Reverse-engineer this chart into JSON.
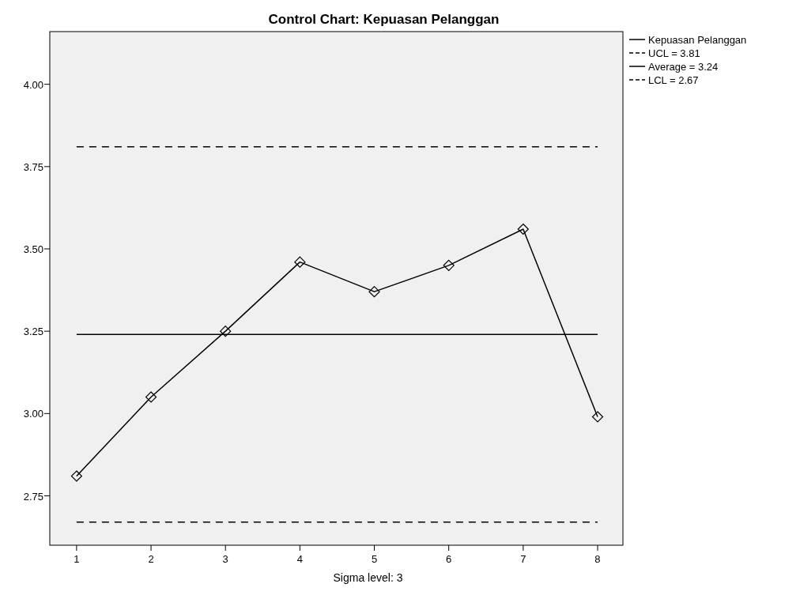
{
  "chart_data": {
    "type": "line",
    "title": "Control Chart: Kepuasan Pelanggan",
    "x": [
      1,
      2,
      3,
      4,
      5,
      6,
      7,
      8
    ],
    "series": [
      {
        "name": "Kepuasan Pelanggan",
        "color": "#000000",
        "values": [
          2.81,
          3.05,
          3.25,
          3.46,
          3.37,
          3.45,
          3.56,
          2.99
        ]
      }
    ],
    "xlim": [
      0.64,
      8.34
    ],
    "xticks": [
      1,
      2,
      3,
      4,
      5,
      6,
      7,
      8
    ],
    "ylim": [
      2.6,
      4.16
    ],
    "yticks": [
      {
        "value": 2.75,
        "label": "2.75"
      },
      {
        "value": 3,
        "label": "3.00"
      },
      {
        "value": 3.25,
        "label": "3.25"
      },
      {
        "value": 3.5,
        "label": "3.50"
      },
      {
        "value": 3.75,
        "label": "3.75"
      },
      {
        "value": 4,
        "label": "4.00"
      }
    ],
    "ref_lines": [
      {
        "axis": "y",
        "value": 3.81,
        "label": "UCL = 3.81",
        "color": "#000000",
        "line_style": "dashed"
      },
      {
        "axis": "y",
        "value": 3.24,
        "label": "Average = 3.24",
        "color": "#000000",
        "line_style": "solid"
      },
      {
        "axis": "y",
        "value": 2.67,
        "label": "LCL = 2.67",
        "color": "#000000",
        "line_style": "dashed"
      }
    ],
    "annotations": [
      "Sigma level: 3"
    ],
    "marker": "diamond",
    "line_style": "solid",
    "grid": false,
    "legend": "top right"
  }
}
